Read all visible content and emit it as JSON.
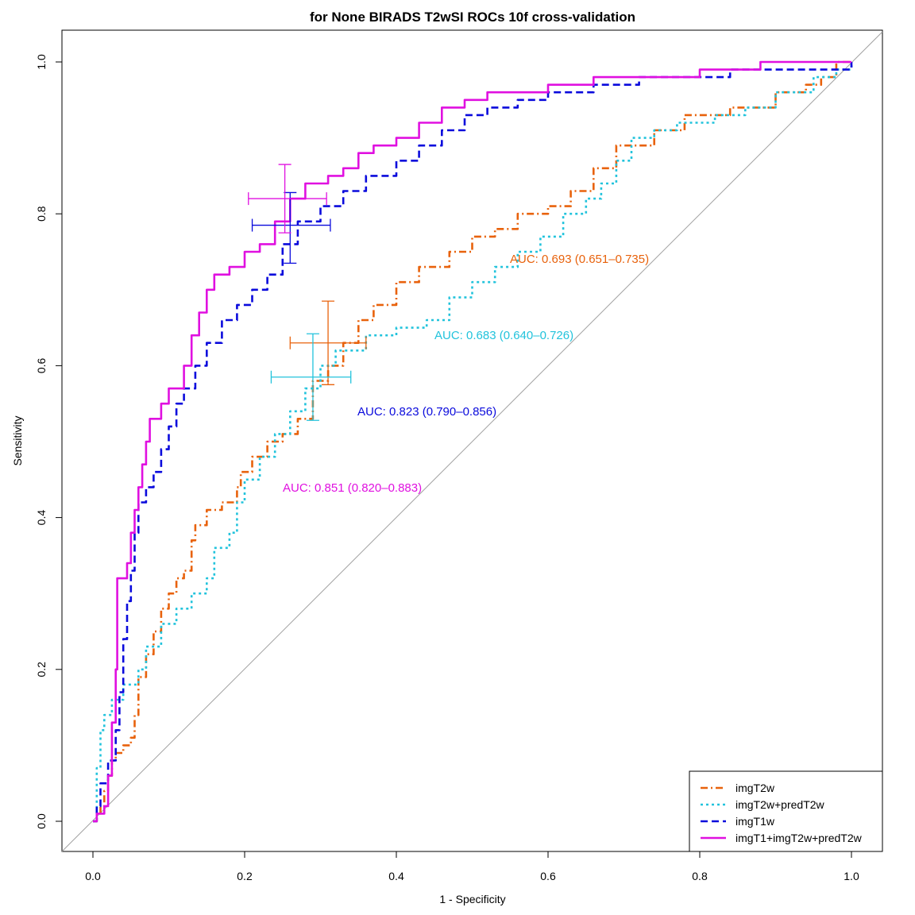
{
  "chart_data": {
    "type": "line",
    "title": "for None BIRADS T2wSI ROCs 10f cross-validation",
    "xlabel": "1 - Specificity",
    "ylabel": "Sensitivity",
    "xlim": [
      0,
      1
    ],
    "ylim": [
      0,
      1
    ],
    "xticks": [
      "0.0",
      "0.2",
      "0.4",
      "0.6",
      "0.8",
      "1.0"
    ],
    "yticks": [
      "0.0",
      "0.2",
      "0.4",
      "0.6",
      "0.8",
      "1.0"
    ],
    "grid": false,
    "legend_position": "bottom-right",
    "reference_line": {
      "x": [
        0,
        1
      ],
      "y": [
        0,
        1
      ],
      "color": "#a0a0a0"
    },
    "series": [
      {
        "name": "imgT2w",
        "color": "#e8620c",
        "dash": "dotdash",
        "auc_label": "AUC: 0.693 (0.651–0.735)",
        "crosshair": {
          "x": 0.31,
          "y": 0.63,
          "xerr": [
            0.26,
            0.36
          ],
          "yerr": [
            0.575,
            0.685
          ]
        },
        "points": [
          [
            0,
            0
          ],
          [
            0.005,
            0.01
          ],
          [
            0.01,
            0.02
          ],
          [
            0.015,
            0.04
          ],
          [
            0.02,
            0.06
          ],
          [
            0.025,
            0.08
          ],
          [
            0.03,
            0.09
          ],
          [
            0.04,
            0.1
          ],
          [
            0.05,
            0.11
          ],
          [
            0.055,
            0.14
          ],
          [
            0.06,
            0.19
          ],
          [
            0.07,
            0.22
          ],
          [
            0.08,
            0.25
          ],
          [
            0.09,
            0.28
          ],
          [
            0.1,
            0.3
          ],
          [
            0.11,
            0.32
          ],
          [
            0.12,
            0.33
          ],
          [
            0.13,
            0.37
          ],
          [
            0.135,
            0.39
          ],
          [
            0.15,
            0.41
          ],
          [
            0.17,
            0.42
          ],
          [
            0.19,
            0.44
          ],
          [
            0.195,
            0.46
          ],
          [
            0.21,
            0.48
          ],
          [
            0.23,
            0.5
          ],
          [
            0.25,
            0.51
          ],
          [
            0.27,
            0.53
          ],
          [
            0.29,
            0.58
          ],
          [
            0.31,
            0.6
          ],
          [
            0.33,
            0.63
          ],
          [
            0.35,
            0.66
          ],
          [
            0.37,
            0.68
          ],
          [
            0.4,
            0.71
          ],
          [
            0.43,
            0.73
          ],
          [
            0.47,
            0.75
          ],
          [
            0.5,
            0.77
          ],
          [
            0.53,
            0.78
          ],
          [
            0.56,
            0.8
          ],
          [
            0.6,
            0.81
          ],
          [
            0.63,
            0.83
          ],
          [
            0.66,
            0.86
          ],
          [
            0.69,
            0.89
          ],
          [
            0.74,
            0.91
          ],
          [
            0.78,
            0.93
          ],
          [
            0.84,
            0.94
          ],
          [
            0.9,
            0.96
          ],
          [
            0.94,
            0.97
          ],
          [
            0.96,
            0.98
          ],
          [
            0.98,
            1.0
          ],
          [
            1,
            1
          ]
        ]
      },
      {
        "name": "imgT2w+predT2w",
        "color": "#22c3dc",
        "dash": "dotted",
        "auc_label": "AUC: 0.683 (0.640–0.726)",
        "crosshair": {
          "x": 0.29,
          "y": 0.585,
          "xerr": [
            0.235,
            0.34
          ],
          "yerr": [
            0.528,
            0.642
          ]
        },
        "points": [
          [
            0,
            0
          ],
          [
            0.005,
            0.07
          ],
          [
            0.01,
            0.12
          ],
          [
            0.015,
            0.14
          ],
          [
            0.025,
            0.16
          ],
          [
            0.04,
            0.18
          ],
          [
            0.06,
            0.2
          ],
          [
            0.07,
            0.23
          ],
          [
            0.09,
            0.26
          ],
          [
            0.11,
            0.28
          ],
          [
            0.13,
            0.3
          ],
          [
            0.15,
            0.32
          ],
          [
            0.16,
            0.36
          ],
          [
            0.18,
            0.38
          ],
          [
            0.19,
            0.42
          ],
          [
            0.2,
            0.45
          ],
          [
            0.22,
            0.48
          ],
          [
            0.24,
            0.51
          ],
          [
            0.26,
            0.54
          ],
          [
            0.28,
            0.57
          ],
          [
            0.3,
            0.6
          ],
          [
            0.32,
            0.62
          ],
          [
            0.36,
            0.64
          ],
          [
            0.4,
            0.65
          ],
          [
            0.44,
            0.66
          ],
          [
            0.47,
            0.69
          ],
          [
            0.5,
            0.71
          ],
          [
            0.53,
            0.73
          ],
          [
            0.56,
            0.75
          ],
          [
            0.59,
            0.77
          ],
          [
            0.62,
            0.8
          ],
          [
            0.65,
            0.82
          ],
          [
            0.67,
            0.84
          ],
          [
            0.69,
            0.87
          ],
          [
            0.71,
            0.9
          ],
          [
            0.74,
            0.91
          ],
          [
            0.77,
            0.92
          ],
          [
            0.82,
            0.93
          ],
          [
            0.86,
            0.94
          ],
          [
            0.9,
            0.96
          ],
          [
            0.95,
            0.98
          ],
          [
            0.98,
            0.99
          ],
          [
            1,
            1
          ]
        ]
      },
      {
        "name": "imgT1w",
        "color": "#0a0adc",
        "dash": "dashed",
        "auc_label": "AUC: 0.823 (0.790–0.856)",
        "crosshair": {
          "x": 0.26,
          "y": 0.785,
          "xerr": [
            0.21,
            0.313
          ],
          "yerr": [
            0.735,
            0.828
          ]
        },
        "points": [
          [
            0,
            0
          ],
          [
            0.005,
            0.02
          ],
          [
            0.01,
            0.05
          ],
          [
            0.02,
            0.08
          ],
          [
            0.03,
            0.12
          ],
          [
            0.035,
            0.17
          ],
          [
            0.04,
            0.24
          ],
          [
            0.045,
            0.29
          ],
          [
            0.05,
            0.33
          ],
          [
            0.055,
            0.38
          ],
          [
            0.06,
            0.42
          ],
          [
            0.07,
            0.44
          ],
          [
            0.08,
            0.46
          ],
          [
            0.09,
            0.49
          ],
          [
            0.1,
            0.52
          ],
          [
            0.11,
            0.55
          ],
          [
            0.12,
            0.57
          ],
          [
            0.135,
            0.6
          ],
          [
            0.15,
            0.63
          ],
          [
            0.17,
            0.66
          ],
          [
            0.19,
            0.68
          ],
          [
            0.21,
            0.7
          ],
          [
            0.23,
            0.72
          ],
          [
            0.25,
            0.76
          ],
          [
            0.27,
            0.79
          ],
          [
            0.3,
            0.81
          ],
          [
            0.33,
            0.83
          ],
          [
            0.36,
            0.85
          ],
          [
            0.4,
            0.87
          ],
          [
            0.43,
            0.89
          ],
          [
            0.46,
            0.91
          ],
          [
            0.49,
            0.93
          ],
          [
            0.52,
            0.94
          ],
          [
            0.56,
            0.95
          ],
          [
            0.6,
            0.96
          ],
          [
            0.66,
            0.97
          ],
          [
            0.72,
            0.98
          ],
          [
            0.78,
            0.98
          ],
          [
            0.84,
            0.99
          ],
          [
            0.9,
            0.99
          ],
          [
            0.96,
            0.99
          ],
          [
            1,
            1
          ]
        ]
      },
      {
        "name": "imgT1+imgT2w+predT2w",
        "color": "#e010e0",
        "dash": "solid",
        "auc_label": "AUC: 0.851 (0.820–0.883)",
        "crosshair": {
          "x": 0.253,
          "y": 0.82,
          "xerr": [
            0.205,
            0.308
          ],
          "yerr": [
            0.775,
            0.865
          ]
        },
        "points": [
          [
            0,
            0
          ],
          [
            0.005,
            0.01
          ],
          [
            0.015,
            0.02
          ],
          [
            0.02,
            0.06
          ],
          [
            0.025,
            0.13
          ],
          [
            0.03,
            0.2
          ],
          [
            0.032,
            0.32
          ],
          [
            0.045,
            0.34
          ],
          [
            0.05,
            0.38
          ],
          [
            0.055,
            0.41
          ],
          [
            0.06,
            0.44
          ],
          [
            0.065,
            0.47
          ],
          [
            0.07,
            0.5
          ],
          [
            0.075,
            0.53
          ],
          [
            0.09,
            0.55
          ],
          [
            0.1,
            0.57
          ],
          [
            0.12,
            0.6
          ],
          [
            0.13,
            0.64
          ],
          [
            0.14,
            0.67
          ],
          [
            0.15,
            0.7
          ],
          [
            0.16,
            0.72
          ],
          [
            0.18,
            0.73
          ],
          [
            0.2,
            0.75
          ],
          [
            0.22,
            0.76
          ],
          [
            0.24,
            0.79
          ],
          [
            0.26,
            0.82
          ],
          [
            0.28,
            0.84
          ],
          [
            0.31,
            0.85
          ],
          [
            0.33,
            0.86
          ],
          [
            0.35,
            0.88
          ],
          [
            0.37,
            0.89
          ],
          [
            0.4,
            0.9
          ],
          [
            0.43,
            0.92
          ],
          [
            0.46,
            0.94
          ],
          [
            0.49,
            0.95
          ],
          [
            0.52,
            0.96
          ],
          [
            0.56,
            0.96
          ],
          [
            0.6,
            0.97
          ],
          [
            0.66,
            0.98
          ],
          [
            0.72,
            0.98
          ],
          [
            0.8,
            0.99
          ],
          [
            0.88,
            1.0
          ],
          [
            0.94,
            1.0
          ],
          [
            1,
            1
          ]
        ]
      }
    ]
  }
}
